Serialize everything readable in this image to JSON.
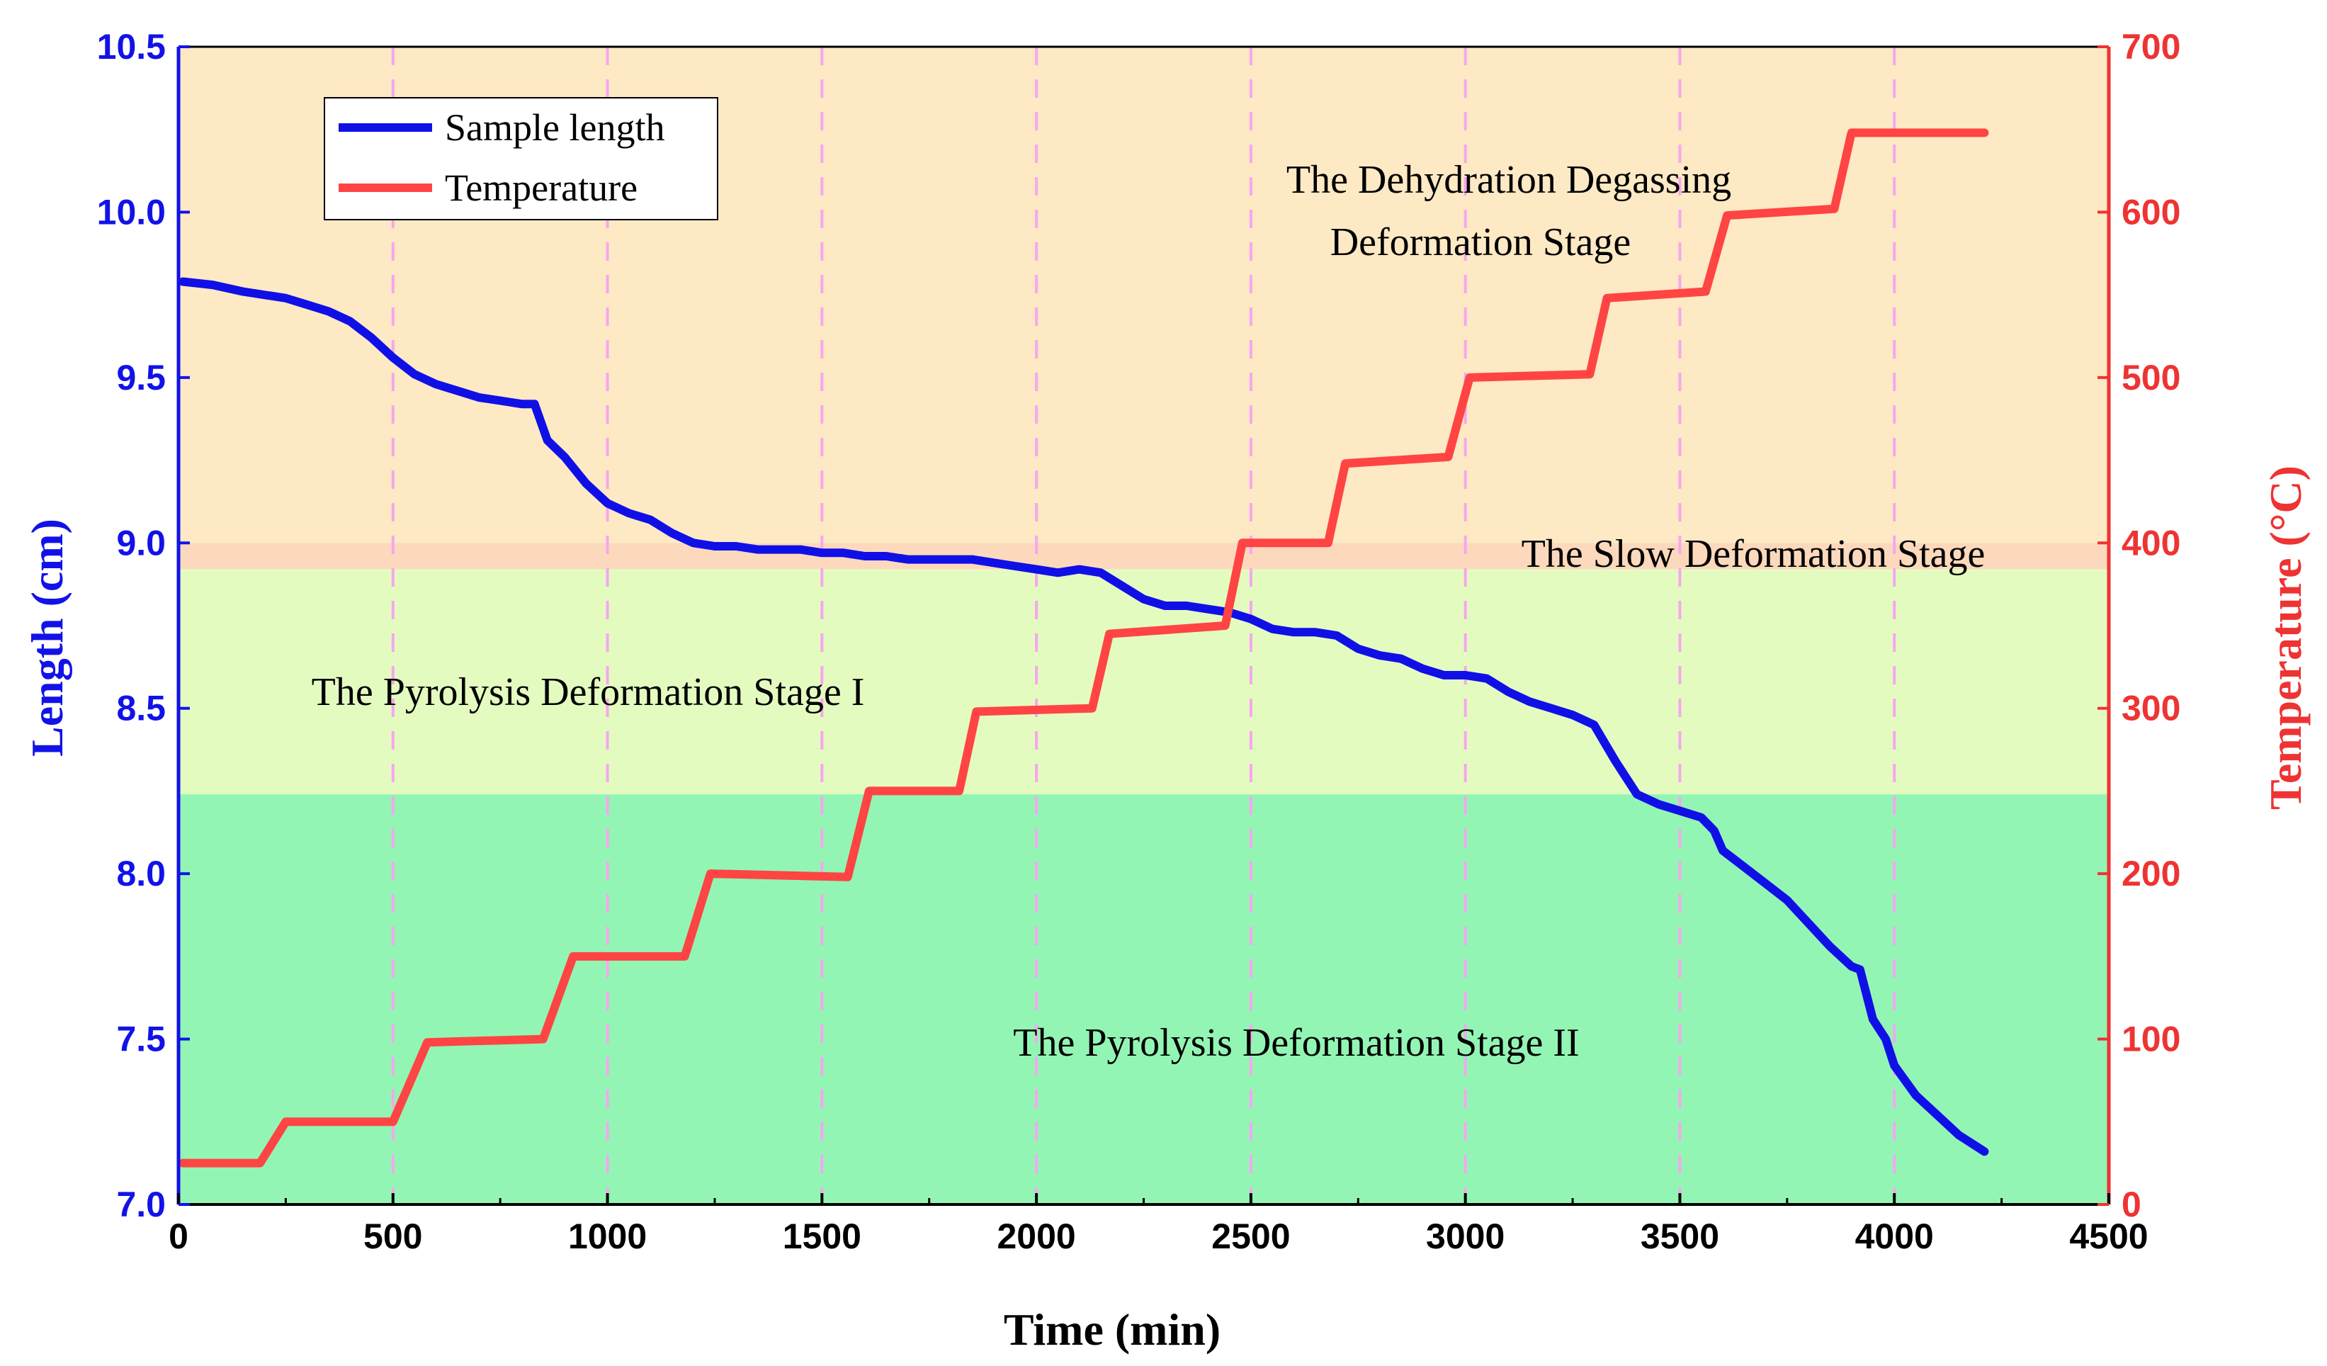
{
  "chart_data": {
    "type": "line",
    "xlabel": "Time (min)",
    "ylabel_left": "Length (cm)",
    "ylabel_right": "Temperature (°C)",
    "xlim": [
      0,
      4500
    ],
    "ylim_left": [
      7.0,
      10.5
    ],
    "ylim_right": [
      0,
      700
    ],
    "xticks": [
      "0",
      "500",
      "1000",
      "1500",
      "2000",
      "2500",
      "3000",
      "3500",
      "4000",
      "4500"
    ],
    "yticks_left": [
      "7.0",
      "7.5",
      "8.0",
      "8.5",
      "9.0",
      "9.5",
      "10.0",
      "10.5"
    ],
    "yticks_right": [
      "0",
      "100",
      "200",
      "300",
      "400",
      "500",
      "600",
      "700"
    ],
    "vertical_dashed_lines_at": [
      500,
      1000,
      1500,
      2000,
      2500,
      3000,
      3500,
      4000
    ],
    "colors": {
      "length": "#1010e6",
      "temperature": "#ff4444",
      "band_dehydration": "#fde9c4",
      "band_transition": "#fcd9bc",
      "band_pyrolysis_1": "#e4fbc0",
      "band_pyrolysis_2": "#93f5b4",
      "dashed_grid": "#f7a6f0"
    },
    "bands": [
      {
        "from": 9.0,
        "to": 10.5,
        "color_key": "band_dehydration"
      },
      {
        "from": 8.92,
        "to": 9.0,
        "color_key": "band_transition"
      },
      {
        "from": 8.24,
        "to": 8.92,
        "color_key": "band_pyrolysis_1"
      },
      {
        "from": 7.0,
        "to": 8.24,
        "color_key": "band_pyrolysis_2"
      }
    ],
    "annotations": {
      "dehydration_line1": "The Dehydration Degassing",
      "dehydration_line2": "Deformation Stage",
      "slow": "The Slow Deformation Stage",
      "pyrolysis1": "The Pyrolysis Deformation Stage I",
      "pyrolysis2": "The Pyrolysis Deformation Stage II"
    },
    "legend": [
      "Sample length",
      "Temperature"
    ],
    "series": [
      {
        "name": "Sample length",
        "axis": "left",
        "x": [
          10,
          80,
          150,
          250,
          300,
          350,
          400,
          450,
          500,
          550,
          600,
          650,
          700,
          750,
          800,
          830,
          860,
          900,
          950,
          1000,
          1050,
          1100,
          1150,
          1200,
          1250,
          1300,
          1350,
          1400,
          1450,
          1500,
          1550,
          1600,
          1650,
          1700,
          1750,
          1800,
          1850,
          1900,
          1950,
          2000,
          2050,
          2100,
          2150,
          2200,
          2250,
          2300,
          2350,
          2400,
          2450,
          2500,
          2550,
          2600,
          2650,
          2700,
          2750,
          2800,
          2850,
          2900,
          2950,
          3000,
          3050,
          3100,
          3150,
          3200,
          3250,
          3300,
          3350,
          3400,
          3450,
          3500,
          3550,
          3580,
          3600,
          3650,
          3700,
          3750,
          3800,
          3850,
          3900,
          3920,
          3950,
          3980,
          4000,
          4050,
          4100,
          4150,
          4210
        ],
        "values": [
          9.79,
          9.78,
          9.76,
          9.74,
          9.72,
          9.7,
          9.67,
          9.62,
          9.56,
          9.51,
          9.48,
          9.46,
          9.44,
          9.43,
          9.42,
          9.42,
          9.31,
          9.26,
          9.18,
          9.12,
          9.09,
          9.07,
          9.03,
          9.0,
          8.99,
          8.99,
          8.98,
          8.98,
          8.98,
          8.97,
          8.97,
          8.96,
          8.96,
          8.95,
          8.95,
          8.95,
          8.95,
          8.94,
          8.93,
          8.92,
          8.91,
          8.92,
          8.91,
          8.87,
          8.83,
          8.81,
          8.81,
          8.8,
          8.79,
          8.77,
          8.74,
          8.73,
          8.73,
          8.72,
          8.68,
          8.66,
          8.65,
          8.62,
          8.6,
          8.6,
          8.59,
          8.55,
          8.52,
          8.5,
          8.48,
          8.45,
          8.34,
          8.24,
          8.21,
          8.19,
          8.17,
          8.13,
          8.07,
          8.02,
          7.97,
          7.92,
          7.85,
          7.78,
          7.72,
          7.71,
          7.56,
          7.5,
          7.42,
          7.33,
          7.27,
          7.21,
          7.16
        ]
      },
      {
        "name": "Temperature",
        "axis": "right",
        "x": [
          10,
          100,
          190,
          250,
          500,
          580,
          850,
          920,
          1180,
          1240,
          1560,
          1610,
          1820,
          1860,
          2130,
          2170,
          2440,
          2480,
          2680,
          2720,
          2960,
          3010,
          3290,
          3330,
          3560,
          3610,
          3860,
          3900,
          4210
        ],
        "values": [
          25,
          25,
          25,
          50,
          50,
          98,
          100,
          150,
          150,
          200,
          198,
          250,
          250,
          298,
          300,
          345,
          350,
          400,
          400,
          448,
          452,
          500,
          502,
          548,
          552,
          598,
          602,
          648,
          648
        ]
      }
    ]
  }
}
